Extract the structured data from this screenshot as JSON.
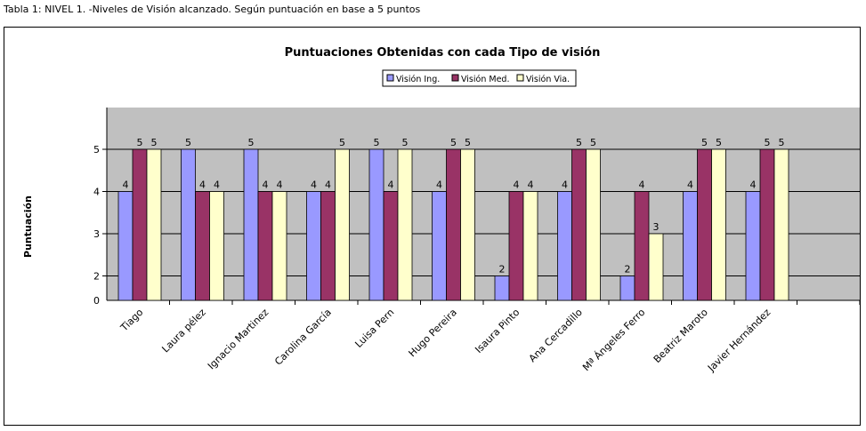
{
  "caption": "Tabla 1: NIVEL 1. -Niveles de Visión alcanzado. Según puntuación en base a 5 puntos",
  "chart_data": {
    "type": "bar",
    "title": "Puntuaciones Obtenidas con cada Tipo de visión",
    "xlabel": "",
    "ylabel": "Puntuación",
    "ylim": [
      1.42,
      6
    ],
    "yticks": [
      2,
      3,
      4,
      5
    ],
    "ytick_labels": [
      "2",
      "3",
      "4",
      "5"
    ],
    "y_bottom_label": "0",
    "grid": true,
    "legend": "top-center",
    "categories": [
      "Tiago",
      "Laura pélez",
      "Ignacio Martinez",
      "Carolina García",
      "Luisa Pern",
      "Hugo Pereira",
      "Isaura Pinto",
      "Ana Cercadillo",
      "Mª Ángeles Ferro",
      "Beatriz Maroto",
      "Javier Hernández",
      ""
    ],
    "series": [
      {
        "name": "Visión Ing.",
        "color": "#9999FF",
        "values": [
          4,
          5,
          5,
          4,
          5,
          4,
          2,
          4,
          2,
          4,
          4,
          null
        ]
      },
      {
        "name": "Visión Med.",
        "color": "#993366",
        "values": [
          5,
          4,
          4,
          4,
          4,
          5,
          4,
          5,
          4,
          5,
          5,
          null
        ]
      },
      {
        "name": "Visión Via.",
        "color": "#FFFFCC",
        "values": [
          5,
          4,
          4,
          5,
          5,
          5,
          4,
          5,
          3,
          5,
          5,
          null
        ]
      }
    ],
    "plot_bg": "#C0C0C0"
  }
}
